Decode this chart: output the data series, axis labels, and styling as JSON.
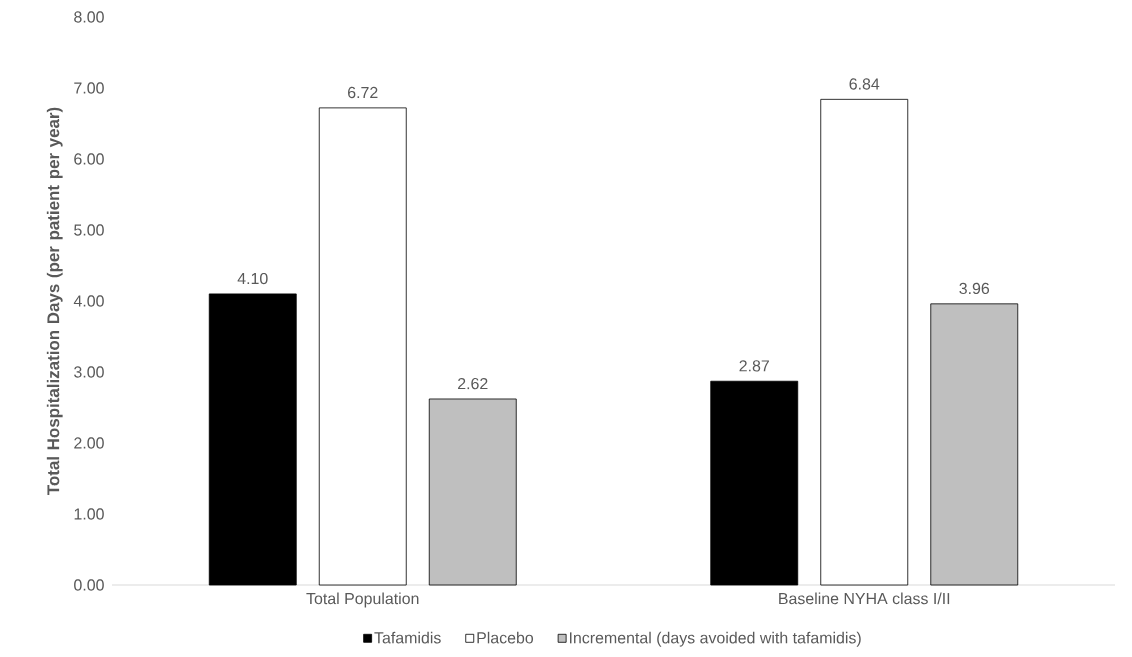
{
  "chart_data": {
    "type": "bar",
    "ylabel": "Total Hospitalization Days (per patient per year)",
    "categories": [
      "Total Population",
      "Baseline NYHA class I/II"
    ],
    "series": [
      {
        "name": "Tafamidis",
        "color": "#000000",
        "values": [
          4.1,
          2.87
        ],
        "value_labels": [
          "4.10",
          "2.87"
        ]
      },
      {
        "name": "Placebo",
        "color": "#ffffff",
        "values": [
          6.72,
          6.84
        ],
        "value_labels": [
          "6.72",
          "6.84"
        ]
      },
      {
        "name": "Incremental (days avoided with tafamidis)",
        "color": "#bfbfbf",
        "values": [
          2.62,
          3.96
        ],
        "value_labels": [
          "2.62",
          "3.96"
        ]
      }
    ],
    "ylim": [
      0,
      8
    ],
    "yticks": [
      {
        "value": 0,
        "label": "0.00"
      },
      {
        "value": 1,
        "label": "1.00"
      },
      {
        "value": 2,
        "label": "2.00"
      },
      {
        "value": 3,
        "label": "3.00"
      },
      {
        "value": 4,
        "label": "4.00"
      },
      {
        "value": 5,
        "label": "5.00"
      },
      {
        "value": 6,
        "label": "6.00"
      },
      {
        "value": 7,
        "label": "7.00"
      },
      {
        "value": 8,
        "label": "8.00"
      }
    ],
    "grid": false,
    "legend": "bottom"
  }
}
